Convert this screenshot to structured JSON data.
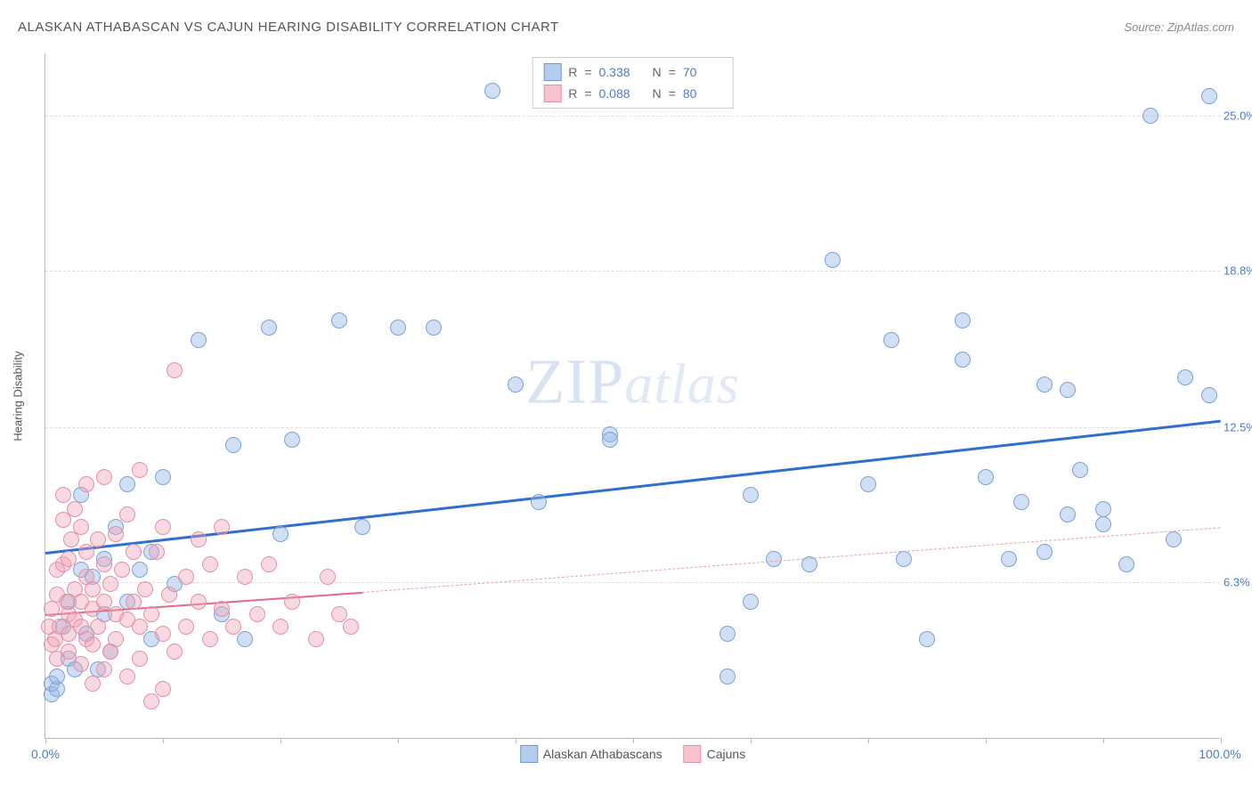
{
  "title": "ALASKAN ATHABASCAN VS CAJUN HEARING DISABILITY CORRELATION CHART",
  "source": "Source: ZipAtlas.com",
  "watermark": {
    "part1": "ZIP",
    "part2": "atlas"
  },
  "axis": {
    "y_title": "Hearing Disability",
    "x_min_label": "0.0%",
    "x_max_label": "100.0%",
    "x_min": 0,
    "x_max": 100,
    "y_min": 0,
    "y_max": 27.5,
    "y_ticks": [
      {
        "v": 6.3,
        "label": "6.3%"
      },
      {
        "v": 12.5,
        "label": "12.5%"
      },
      {
        "v": 18.8,
        "label": "18.8%"
      },
      {
        "v": 25.0,
        "label": "25.0%"
      }
    ],
    "x_tick_positions": [
      0,
      10,
      20,
      30,
      40,
      50,
      60,
      70,
      80,
      90,
      100
    ]
  },
  "colors": {
    "series_a_fill": "rgba(150,185,230,0.45)",
    "series_a_stroke": "#7ba3d6",
    "series_a_line": "#2e6fd0",
    "series_b_fill": "rgba(240,160,180,0.40)",
    "series_b_stroke": "#e690a6",
    "series_b_line": "#e06a88",
    "axis_label_color": "#4a7bc8",
    "grid_color": "#dddddd"
  },
  "legend_top": {
    "r_label": "R",
    "n_label": "N",
    "eq": "=",
    "rows": [
      {
        "swatch_fill": "#b5cdec",
        "swatch_border": "#6f98d2",
        "r": "0.338",
        "n": "70"
      },
      {
        "swatch_fill": "#f6c3cf",
        "swatch_border": "#e690a6",
        "r": "0.088",
        "n": "80"
      }
    ]
  },
  "legend_bottom": {
    "items": [
      {
        "swatch_fill": "#b5cdec",
        "swatch_border": "#6f98d2",
        "label": "Alaskan Athabascans"
      },
      {
        "swatch_fill": "#f6c3cf",
        "swatch_border": "#e690a6",
        "label": "Cajuns"
      }
    ]
  },
  "series": [
    {
      "name": "Alaskan Athabascans",
      "fill": "rgba(150,185,230,0.45)",
      "stroke": "#7ba3d6",
      "marker_r": 9,
      "trend": {
        "x1": 0,
        "y1": 7.5,
        "x2": 100,
        "y2": 12.8,
        "color": "#2e6fd0",
        "width": 3,
        "dash": "none",
        "full_x2": 100
      },
      "points": [
        [
          0.5,
          1.8
        ],
        [
          0.5,
          2.2
        ],
        [
          1,
          2.0
        ],
        [
          1,
          2.5
        ],
        [
          1.5,
          4.5
        ],
        [
          2,
          3.2
        ],
        [
          2,
          5.5
        ],
        [
          2.5,
          2.8
        ],
        [
          3,
          6.8
        ],
        [
          3,
          9.8
        ],
        [
          3.5,
          4.2
        ],
        [
          4,
          6.5
        ],
        [
          4.5,
          2.8
        ],
        [
          5,
          5.0
        ],
        [
          5,
          7.2
        ],
        [
          5.5,
          3.5
        ],
        [
          6,
          8.5
        ],
        [
          7,
          10.2
        ],
        [
          7,
          5.5
        ],
        [
          8,
          6.8
        ],
        [
          9,
          4.0
        ],
        [
          9,
          7.5
        ],
        [
          10,
          10.5
        ],
        [
          11,
          6.2
        ],
        [
          13,
          16.0
        ],
        [
          15,
          5.0
        ],
        [
          16,
          11.8
        ],
        [
          17,
          4.0
        ],
        [
          19,
          16.5
        ],
        [
          20,
          8.2
        ],
        [
          21,
          12.0
        ],
        [
          25,
          16.8
        ],
        [
          27,
          8.5
        ],
        [
          30,
          16.5
        ],
        [
          33,
          16.5
        ],
        [
          38,
          26.0
        ],
        [
          40,
          14.2
        ],
        [
          42,
          9.5
        ],
        [
          48,
          12.2
        ],
        [
          48,
          12.0
        ],
        [
          44,
          26.0
        ],
        [
          58,
          2.5
        ],
        [
          58,
          4.2
        ],
        [
          60,
          5.5
        ],
        [
          60,
          9.8
        ],
        [
          62,
          7.2
        ],
        [
          65,
          7.0
        ],
        [
          67,
          19.2
        ],
        [
          70,
          10.2
        ],
        [
          72,
          16.0
        ],
        [
          73,
          7.2
        ],
        [
          75,
          4.0
        ],
        [
          78,
          15.2
        ],
        [
          78,
          16.8
        ],
        [
          80,
          10.5
        ],
        [
          82,
          7.2
        ],
        [
          83,
          9.5
        ],
        [
          85,
          14.2
        ],
        [
          85,
          7.5
        ],
        [
          87,
          14.0
        ],
        [
          87,
          9.0
        ],
        [
          88,
          10.8
        ],
        [
          90,
          9.2
        ],
        [
          90,
          8.6
        ],
        [
          92,
          7.0
        ],
        [
          94,
          25.0
        ],
        [
          96,
          8.0
        ],
        [
          97,
          14.5
        ],
        [
          99,
          25.8
        ],
        [
          99,
          13.8
        ]
      ]
    },
    {
      "name": "Cajuns",
      "fill": "rgba(240,160,180,0.40)",
      "stroke": "#e690a6",
      "marker_r": 9,
      "trend": {
        "x1": 0,
        "y1": 5.0,
        "x2": 27,
        "y2": 5.9,
        "color": "#e06a88",
        "width": 2.5,
        "dash": "none",
        "extend": {
          "x1": 27,
          "y1": 5.9,
          "x2": 100,
          "y2": 8.5,
          "color": "#e8a0b0",
          "width": 1.5,
          "dash": "6,5"
        }
      },
      "points": [
        [
          0.3,
          4.5
        ],
        [
          0.5,
          3.8
        ],
        [
          0.5,
          5.2
        ],
        [
          0.8,
          4.0
        ],
        [
          1,
          3.2
        ],
        [
          1,
          5.8
        ],
        [
          1,
          6.8
        ],
        [
          1.2,
          4.5
        ],
        [
          1.5,
          7.0
        ],
        [
          1.5,
          8.8
        ],
        [
          1.5,
          9.8
        ],
        [
          1.8,
          5.5
        ],
        [
          2,
          3.5
        ],
        [
          2,
          4.2
        ],
        [
          2,
          5.0
        ],
        [
          2,
          7.2
        ],
        [
          2.2,
          8.0
        ],
        [
          2.5,
          4.8
        ],
        [
          2.5,
          6.0
        ],
        [
          2.5,
          9.2
        ],
        [
          3,
          3.0
        ],
        [
          3,
          4.5
        ],
        [
          3,
          5.5
        ],
        [
          3,
          8.5
        ],
        [
          3.5,
          4.0
        ],
        [
          3.5,
          6.5
        ],
        [
          3.5,
          7.5
        ],
        [
          3.5,
          10.2
        ],
        [
          4,
          2.2
        ],
        [
          4,
          3.8
        ],
        [
          4,
          5.2
        ],
        [
          4,
          6.0
        ],
        [
          4.5,
          4.5
        ],
        [
          4.5,
          8.0
        ],
        [
          5,
          2.8
        ],
        [
          5,
          5.5
        ],
        [
          5,
          7.0
        ],
        [
          5,
          10.5
        ],
        [
          5.5,
          3.5
        ],
        [
          5.5,
          6.2
        ],
        [
          6,
          4.0
        ],
        [
          6,
          5.0
        ],
        [
          6,
          8.2
        ],
        [
          6.5,
          6.8
        ],
        [
          7,
          2.5
        ],
        [
          7,
          4.8
        ],
        [
          7,
          9.0
        ],
        [
          7.5,
          5.5
        ],
        [
          7.5,
          7.5
        ],
        [
          8,
          3.2
        ],
        [
          8,
          4.5
        ],
        [
          8,
          10.8
        ],
        [
          8.5,
          6.0
        ],
        [
          9,
          1.5
        ],
        [
          9,
          5.0
        ],
        [
          9.5,
          7.5
        ],
        [
          10,
          2.0
        ],
        [
          10,
          4.2
        ],
        [
          10,
          8.5
        ],
        [
          10.5,
          5.8
        ],
        [
          11,
          3.5
        ],
        [
          11,
          14.8
        ],
        [
          12,
          4.5
        ],
        [
          12,
          6.5
        ],
        [
          13,
          5.5
        ],
        [
          13,
          8.0
        ],
        [
          14,
          4.0
        ],
        [
          14,
          7.0
        ],
        [
          15,
          5.2
        ],
        [
          15,
          8.5
        ],
        [
          16,
          4.5
        ],
        [
          17,
          6.5
        ],
        [
          18,
          5.0
        ],
        [
          19,
          7.0
        ],
        [
          20,
          4.5
        ],
        [
          21,
          5.5
        ],
        [
          23,
          4.0
        ],
        [
          24,
          6.5
        ],
        [
          25,
          5.0
        ],
        [
          26,
          4.5
        ]
      ]
    }
  ]
}
